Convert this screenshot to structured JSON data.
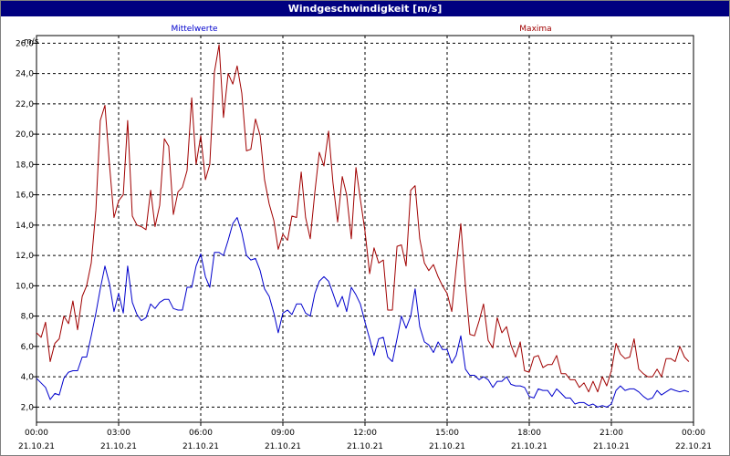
{
  "window": {
    "title": "Windgeschwindigkeit [m/s]"
  },
  "colors": {
    "mean": "#0000cc",
    "max": "#a00000",
    "grid": "#000000",
    "titlebar": "#000080"
  },
  "chart_data": {
    "type": "line",
    "title": "Windgeschwindigkeit [m/s]",
    "ylabel": "m/s",
    "xlabel": "",
    "ylim": [
      1.0,
      26.5
    ],
    "xlim": [
      0,
      24
    ],
    "grid": true,
    "y_ticks": [
      "2,0",
      "4,0",
      "6,0",
      "8,0",
      "10,0",
      "12,0",
      "14,0",
      "16,0",
      "18,0",
      "20,0",
      "22,0",
      "24,0",
      "26,0"
    ],
    "x_ticks": [
      {
        "time": "00:00",
        "date": "21.10.21"
      },
      {
        "time": "03:00",
        "date": "21.10.21"
      },
      {
        "time": "06:00",
        "date": "21.10.21"
      },
      {
        "time": "09:00",
        "date": "21.10.21"
      },
      {
        "time": "12:00",
        "date": "21.10.21"
      },
      {
        "time": "15:00",
        "date": "21.10.21"
      },
      {
        "time": "18:00",
        "date": "21.10.21"
      },
      {
        "time": "21:00",
        "date": "21.10.21"
      },
      {
        "time": "00:00",
        "date": "22.10.21"
      }
    ],
    "series": [
      {
        "name": "Mittelwerte",
        "color": "#0000cc",
        "points": [
          [
            0,
            3.9
          ],
          [
            0.33,
            3.3
          ],
          [
            0.5,
            2.5
          ],
          [
            0.67,
            2.9
          ],
          [
            0.83,
            2.8
          ],
          [
            1.0,
            3.9
          ],
          [
            1.17,
            4.3
          ],
          [
            1.33,
            4.4
          ],
          [
            1.5,
            4.4
          ],
          [
            1.67,
            5.3
          ],
          [
            1.83,
            5.3
          ],
          [
            2.0,
            6.7
          ],
          [
            2.17,
            8.2
          ],
          [
            2.33,
            9.8
          ],
          [
            2.5,
            11.3
          ],
          [
            2.67,
            10.1
          ],
          [
            2.83,
            8.3
          ],
          [
            3.0,
            9.5
          ],
          [
            3.17,
            8.2
          ],
          [
            3.33,
            11.3
          ],
          [
            3.5,
            8.9
          ],
          [
            3.67,
            8.1
          ],
          [
            3.83,
            7.7
          ],
          [
            4.0,
            7.9
          ],
          [
            4.17,
            8.8
          ],
          [
            4.33,
            8.5
          ],
          [
            4.5,
            8.9
          ],
          [
            4.67,
            9.1
          ],
          [
            4.83,
            9.1
          ],
          [
            5.0,
            8.5
          ],
          [
            5.17,
            8.4
          ],
          [
            5.33,
            8.4
          ],
          [
            5.5,
            9.9
          ],
          [
            5.67,
            9.9
          ],
          [
            5.83,
            11.3
          ],
          [
            6.0,
            12.1
          ],
          [
            6.17,
            10.6
          ],
          [
            6.33,
            9.9
          ],
          [
            6.5,
            12.2
          ],
          [
            6.67,
            12.2
          ],
          [
            6.83,
            12.0
          ],
          [
            7.0,
            13.0
          ],
          [
            7.17,
            14.1
          ],
          [
            7.33,
            14.5
          ],
          [
            7.5,
            13.5
          ],
          [
            7.67,
            12.0
          ],
          [
            7.83,
            11.7
          ],
          [
            8.0,
            11.8
          ],
          [
            8.17,
            11.0
          ],
          [
            8.33,
            9.8
          ],
          [
            8.5,
            9.3
          ],
          [
            8.67,
            8.2
          ],
          [
            8.83,
            6.9
          ],
          [
            9.0,
            8.2
          ],
          [
            9.17,
            8.4
          ],
          [
            9.33,
            8.1
          ],
          [
            9.5,
            8.8
          ],
          [
            9.67,
            8.8
          ],
          [
            9.83,
            8.2
          ],
          [
            10.0,
            8.0
          ],
          [
            10.17,
            9.5
          ],
          [
            10.33,
            10.3
          ],
          [
            10.5,
            10.6
          ],
          [
            10.67,
            10.3
          ],
          [
            10.83,
            9.5
          ],
          [
            11.0,
            8.6
          ],
          [
            11.17,
            9.3
          ],
          [
            11.33,
            8.3
          ],
          [
            11.5,
            9.9
          ],
          [
            11.67,
            9.4
          ],
          [
            11.83,
            8.8
          ],
          [
            12.0,
            7.6
          ],
          [
            12.17,
            6.5
          ],
          [
            12.33,
            5.4
          ],
          [
            12.5,
            6.5
          ],
          [
            12.67,
            6.6
          ],
          [
            12.83,
            5.3
          ],
          [
            13.0,
            5.0
          ],
          [
            13.17,
            6.5
          ],
          [
            13.33,
            8.0
          ],
          [
            13.5,
            7.2
          ],
          [
            13.67,
            8.0
          ],
          [
            13.83,
            9.8
          ],
          [
            14.0,
            7.3
          ],
          [
            14.17,
            6.3
          ],
          [
            14.33,
            6.1
          ],
          [
            14.5,
            5.6
          ],
          [
            14.67,
            6.3
          ],
          [
            14.83,
            5.8
          ],
          [
            15.0,
            5.8
          ],
          [
            15.17,
            4.9
          ],
          [
            15.33,
            5.4
          ],
          [
            15.5,
            6.7
          ],
          [
            15.67,
            4.5
          ],
          [
            15.83,
            4.1
          ],
          [
            16.0,
            4.1
          ],
          [
            16.17,
            3.8
          ],
          [
            16.33,
            4.0
          ],
          [
            16.5,
            3.8
          ],
          [
            16.67,
            3.3
          ],
          [
            16.83,
            3.7
          ],
          [
            17.0,
            3.7
          ],
          [
            17.17,
            4.0
          ],
          [
            17.33,
            3.5
          ],
          [
            17.5,
            3.4
          ],
          [
            17.67,
            3.4
          ],
          [
            17.83,
            3.3
          ],
          [
            18.0,
            2.7
          ],
          [
            18.17,
            2.6
          ],
          [
            18.33,
            3.2
          ],
          [
            18.5,
            3.1
          ],
          [
            18.67,
            3.1
          ],
          [
            18.83,
            2.7
          ],
          [
            19.0,
            3.2
          ],
          [
            19.17,
            2.9
          ],
          [
            19.33,
            2.6
          ],
          [
            19.5,
            2.6
          ],
          [
            19.67,
            2.2
          ],
          [
            19.83,
            2.3
          ],
          [
            20.0,
            2.3
          ],
          [
            20.17,
            2.1
          ],
          [
            20.33,
            2.2
          ],
          [
            20.5,
            2.0
          ],
          [
            20.67,
            2.1
          ],
          [
            20.83,
            2.0
          ],
          [
            21.0,
            2.2
          ],
          [
            21.17,
            3.1
          ],
          [
            21.33,
            3.4
          ],
          [
            21.5,
            3.1
          ],
          [
            21.67,
            3.2
          ],
          [
            21.83,
            3.2
          ],
          [
            22.0,
            3.0
          ],
          [
            22.17,
            2.7
          ],
          [
            22.33,
            2.5
          ],
          [
            22.5,
            2.6
          ],
          [
            22.67,
            3.1
          ],
          [
            22.83,
            2.8
          ],
          [
            23.0,
            3.0
          ],
          [
            23.17,
            3.2
          ],
          [
            23.33,
            3.1
          ],
          [
            23.5,
            3.0
          ],
          [
            23.67,
            3.1
          ],
          [
            23.83,
            3.0
          ]
        ]
      },
      {
        "name": "Maxima",
        "color": "#a00000",
        "points": [
          [
            0,
            6.9
          ],
          [
            0.17,
            6.6
          ],
          [
            0.33,
            7.6
          ],
          [
            0.5,
            5.0
          ],
          [
            0.67,
            6.2
          ],
          [
            0.83,
            6.5
          ],
          [
            1.0,
            8.0
          ],
          [
            1.17,
            7.5
          ],
          [
            1.33,
            9.0
          ],
          [
            1.5,
            7.1
          ],
          [
            1.67,
            9.3
          ],
          [
            1.83,
            10.0
          ],
          [
            2.0,
            11.5
          ],
          [
            2.17,
            15.0
          ],
          [
            2.33,
            20.9
          ],
          [
            2.5,
            21.9
          ],
          [
            2.67,
            17.9
          ],
          [
            2.83,
            14.5
          ],
          [
            3.0,
            15.6
          ],
          [
            3.17,
            16.0
          ],
          [
            3.33,
            20.9
          ],
          [
            3.5,
            14.6
          ],
          [
            3.67,
            14.0
          ],
          [
            3.83,
            13.9
          ],
          [
            4.0,
            13.7
          ],
          [
            4.17,
            16.3
          ],
          [
            4.33,
            13.9
          ],
          [
            4.5,
            15.3
          ],
          [
            4.67,
            19.7
          ],
          [
            4.83,
            19.2
          ],
          [
            5.0,
            14.7
          ],
          [
            5.17,
            16.2
          ],
          [
            5.33,
            16.5
          ],
          [
            5.5,
            17.6
          ],
          [
            5.67,
            22.4
          ],
          [
            5.83,
            18.0
          ],
          [
            6.0,
            19.9
          ],
          [
            6.17,
            17.0
          ],
          [
            6.33,
            18.0
          ],
          [
            6.5,
            24.1
          ],
          [
            6.67,
            25.9
          ],
          [
            6.83,
            21.1
          ],
          [
            7.0,
            24.0
          ],
          [
            7.17,
            23.3
          ],
          [
            7.33,
            24.5
          ],
          [
            7.5,
            22.7
          ],
          [
            7.67,
            18.9
          ],
          [
            7.83,
            19.0
          ],
          [
            8.0,
            21.0
          ],
          [
            8.17,
            19.9
          ],
          [
            8.33,
            17.0
          ],
          [
            8.5,
            15.4
          ],
          [
            8.67,
            14.3
          ],
          [
            8.83,
            12.4
          ],
          [
            9.0,
            13.4
          ],
          [
            9.17,
            13.0
          ],
          [
            9.33,
            14.6
          ],
          [
            9.5,
            14.5
          ],
          [
            9.67,
            17.5
          ],
          [
            9.83,
            14.5
          ],
          [
            10.0,
            13.1
          ],
          [
            10.17,
            16.2
          ],
          [
            10.33,
            18.8
          ],
          [
            10.5,
            17.9
          ],
          [
            10.67,
            20.2
          ],
          [
            10.83,
            16.8
          ],
          [
            11.0,
            14.2
          ],
          [
            11.17,
            17.2
          ],
          [
            11.33,
            16.0
          ],
          [
            11.5,
            13.1
          ],
          [
            11.67,
            17.8
          ],
          [
            11.83,
            15.7
          ],
          [
            12.0,
            13.6
          ],
          [
            12.17,
            10.8
          ],
          [
            12.33,
            12.5
          ],
          [
            12.5,
            11.5
          ],
          [
            12.67,
            11.7
          ],
          [
            12.83,
            8.4
          ],
          [
            13.0,
            8.4
          ],
          [
            13.17,
            12.6
          ],
          [
            13.33,
            12.7
          ],
          [
            13.5,
            11.3
          ],
          [
            13.67,
            16.3
          ],
          [
            13.83,
            16.6
          ],
          [
            14.0,
            13.1
          ],
          [
            14.17,
            11.5
          ],
          [
            14.33,
            11.0
          ],
          [
            14.5,
            11.4
          ],
          [
            14.67,
            10.6
          ],
          [
            14.83,
            10.0
          ],
          [
            15.0,
            9.5
          ],
          [
            15.17,
            8.3
          ],
          [
            15.33,
            11.2
          ],
          [
            15.5,
            14.1
          ],
          [
            15.67,
            10.0
          ],
          [
            15.83,
            6.8
          ],
          [
            16.0,
            6.7
          ],
          [
            16.17,
            7.7
          ],
          [
            16.33,
            8.8
          ],
          [
            16.5,
            6.4
          ],
          [
            16.67,
            5.9
          ],
          [
            16.83,
            7.9
          ],
          [
            17.0,
            6.9
          ],
          [
            17.17,
            7.3
          ],
          [
            17.33,
            6.1
          ],
          [
            17.5,
            5.3
          ],
          [
            17.67,
            6.3
          ],
          [
            17.83,
            4.4
          ],
          [
            18.0,
            4.3
          ],
          [
            18.17,
            5.3
          ],
          [
            18.33,
            5.4
          ],
          [
            18.5,
            4.6
          ],
          [
            18.67,
            4.8
          ],
          [
            18.83,
            4.8
          ],
          [
            19.0,
            5.4
          ],
          [
            19.17,
            4.2
          ],
          [
            19.33,
            4.2
          ],
          [
            19.5,
            3.8
          ],
          [
            19.67,
            3.8
          ],
          [
            19.83,
            3.3
          ],
          [
            20.0,
            3.6
          ],
          [
            20.17,
            3.0
          ],
          [
            20.33,
            3.7
          ],
          [
            20.5,
            3.0
          ],
          [
            20.67,
            4.0
          ],
          [
            20.83,
            3.4
          ],
          [
            21.0,
            4.4
          ],
          [
            21.17,
            6.2
          ],
          [
            21.33,
            5.5
          ],
          [
            21.5,
            5.2
          ],
          [
            21.67,
            5.3
          ],
          [
            21.83,
            6.5
          ],
          [
            22.0,
            4.5
          ],
          [
            22.17,
            4.2
          ],
          [
            22.33,
            4.0
          ],
          [
            22.5,
            4.0
          ],
          [
            22.67,
            4.5
          ],
          [
            22.83,
            4.0
          ],
          [
            23.0,
            5.2
          ],
          [
            23.17,
            5.2
          ],
          [
            23.33,
            5.0
          ],
          [
            23.5,
            6.0
          ],
          [
            23.67,
            5.3
          ],
          [
            23.83,
            5.0
          ]
        ]
      }
    ]
  }
}
